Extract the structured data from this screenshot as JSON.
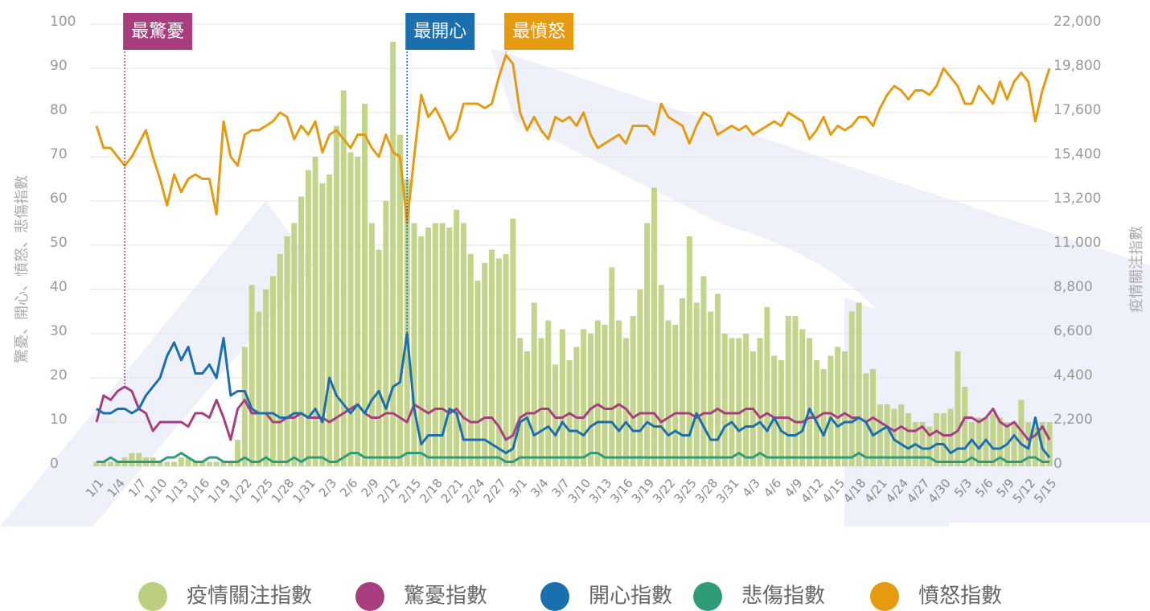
{
  "chart_data": {
    "type": "bar-line",
    "y_label": "驚憂、開心、憤怒、悲傷指數",
    "y2_label": "疫情關注指數",
    "ylim": [
      0,
      100
    ],
    "yticks": [
      0,
      10,
      20,
      30,
      40,
      50,
      60,
      70,
      80,
      90,
      100
    ],
    "y2lim": [
      0,
      22000
    ],
    "y2ticks": [
      0,
      {
        "value": 2200,
        "label": "2,200"
      },
      {
        "value": 4400,
        "label": "4,400"
      },
      {
        "value": 6600,
        "label": "6,600"
      },
      {
        "value": 8800,
        "label": "8,800"
      },
      {
        "value": 11000,
        "label": "11,000"
      },
      {
        "value": 13200,
        "label": "13,200"
      },
      {
        "value": 15400,
        "label": "15,400"
      },
      {
        "value": 17600,
        "label": "17,600"
      },
      {
        "value": 19800,
        "label": "19,800"
      },
      {
        "value": 22000,
        "label": "22,000"
      }
    ],
    "grid": true,
    "categories": [
      "1/1",
      null,
      null,
      "1/4",
      null,
      null,
      "1/7",
      null,
      null,
      "1/10",
      null,
      null,
      "1/13",
      null,
      null,
      "1/16",
      null,
      null,
      "1/19",
      null,
      null,
      "1/22",
      null,
      null,
      "1/25",
      null,
      null,
      "1/28",
      null,
      null,
      "1/31",
      null,
      null,
      "2/3",
      null,
      null,
      "2/6",
      null,
      null,
      "2/9",
      null,
      null,
      "2/12",
      null,
      null,
      "2/15",
      null,
      null,
      "2/18",
      null,
      null,
      "2/21",
      null,
      null,
      "2/24",
      null,
      null,
      "2/27",
      null,
      null,
      "3/1",
      null,
      null,
      "3/4",
      null,
      null,
      "3/7",
      null,
      null,
      "3/10",
      null,
      null,
      "3/13",
      null,
      null,
      "3/16",
      null,
      null,
      "3/19",
      null,
      null,
      "3/22",
      null,
      null,
      "3/25",
      null,
      null,
      "3/28",
      null,
      null,
      "3/31",
      null,
      null,
      "4/3",
      null,
      null,
      "4/6",
      null,
      null,
      "4/9",
      null,
      null,
      "4/12",
      null,
      null,
      "4/15",
      null,
      null,
      "4/18",
      null,
      null,
      "4/21",
      null,
      null,
      "4/24",
      null,
      null,
      "4/27",
      null,
      null,
      "4/30",
      null,
      null,
      "5/3",
      null,
      null,
      "5/6",
      null,
      null,
      "5/9",
      null,
      null,
      "5/12",
      null,
      null,
      "5/15"
    ],
    "series": [
      {
        "name": "疫情關注指數",
        "type": "bar",
        "axis": "y2",
        "color": "#bccf7e",
        "values": [
          220,
          220,
          220,
          220,
          440,
          660,
          660,
          440,
          440,
          220,
          220,
          220,
          440,
          440,
          220,
          220,
          220,
          220,
          220,
          220,
          1320,
          5940,
          9020,
          7700,
          8800,
          9460,
          10560,
          11440,
          12100,
          13420,
          14740,
          15400,
          14080,
          14520,
          16940,
          18700,
          15620,
          15400,
          18040,
          12100,
          10780,
          13200,
          21120,
          16500,
          14300,
          12100,
          11440,
          11880,
          12100,
          12100,
          11880,
          12760,
          12100,
          10560,
          9240,
          10120,
          10780,
          10340,
          10560,
          12320,
          6380,
          5720,
          8140,
          6380,
          7260,
          5060,
          6820,
          5280,
          5940,
          6820,
          6600,
          7260,
          7040,
          9900,
          7260,
          6380,
          7480,
          8800,
          12100,
          13860,
          9020,
          7260,
          7040,
          8360,
          11440,
          8140,
          9460,
          7700,
          8580,
          6600,
          6380,
          6380,
          6600,
          5720,
          6380,
          7920,
          5500,
          5280,
          7480,
          7480,
          6820,
          6380,
          5280,
          4840,
          5500,
          5940,
          5720,
          7700,
          8140,
          4620,
          4840,
          3080,
          3080,
          2860,
          3080,
          2640,
          2200,
          2200,
          1980,
          2640,
          2640,
          2860,
          5720,
          3960,
          2200,
          2420,
          2420,
          2640,
          2420,
          2200,
          2200,
          3300,
          2200,
          1980,
          2200,
          2200
        ]
      },
      {
        "name": "驚憂指數",
        "type": "line",
        "color": "#a83d80",
        "annotation": "最驚憂",
        "values": [
          10,
          16,
          15,
          17,
          18,
          17,
          13,
          12,
          8,
          10,
          10,
          10,
          10,
          9,
          12,
          12,
          11,
          15,
          11,
          6,
          13,
          15,
          12,
          12,
          12,
          10,
          10,
          11,
          11,
          12,
          11,
          11,
          11,
          10,
          11,
          12,
          13,
          14,
          12,
          11,
          11,
          12,
          12,
          11,
          10,
          14,
          13,
          12,
          13,
          13,
          12,
          13,
          11,
          10,
          10,
          11,
          11,
          9,
          6,
          7,
          11,
          12,
          12,
          13,
          13,
          11,
          11,
          12,
          11,
          11,
          13,
          14,
          13,
          13,
          14,
          13,
          11,
          12,
          12,
          12,
          10,
          11,
          12,
          12,
          12,
          11,
          12,
          12,
          13,
          12,
          12,
          12,
          13,
          13,
          11,
          12,
          11,
          11,
          11,
          10,
          10,
          11,
          11,
          12,
          12,
          11,
          12,
          11,
          11,
          10,
          11,
          10,
          9,
          8,
          9,
          8,
          8,
          9,
          7,
          8,
          7,
          7,
          8,
          11,
          11,
          10,
          11,
          13,
          10,
          9,
          10,
          8,
          6,
          7,
          9,
          6
        ]
      },
      {
        "name": "開心指數",
        "type": "line",
        "color": "#1a6fae",
        "annotation": "最開心",
        "values": [
          13,
          12,
          12,
          13,
          13,
          12,
          13,
          16,
          18,
          20,
          25,
          28,
          24,
          27,
          21,
          21,
          23,
          20,
          29,
          16,
          17,
          17,
          13,
          12,
          12,
          12,
          11,
          11,
          12,
          12,
          11,
          13,
          10,
          20,
          16,
          14,
          12,
          14,
          12,
          15,
          17,
          13,
          18,
          19,
          30,
          13,
          5,
          7,
          7,
          7,
          13,
          12,
          6,
          6,
          6,
          6,
          5,
          4,
          3,
          4,
          10,
          11,
          7,
          8,
          9,
          7,
          10,
          8,
          8,
          7,
          9,
          10,
          10,
          10,
          8,
          10,
          8,
          8,
          10,
          9,
          9,
          7,
          8,
          7,
          7,
          12,
          9,
          6,
          6,
          9,
          10,
          8,
          9,
          9,
          10,
          8,
          11,
          8,
          7,
          7,
          8,
          13,
          10,
          7,
          11,
          9,
          10,
          10,
          11,
          10,
          7,
          8,
          9,
          6,
          5,
          4,
          5,
          4,
          4,
          5,
          5,
          3,
          4,
          4,
          6,
          4,
          6,
          4,
          4,
          5,
          7,
          5,
          4,
          11,
          4,
          2
        ]
      },
      {
        "name": "悲傷指數",
        "type": "line",
        "color": "#2e9c78",
        "values": [
          1,
          1,
          2,
          1,
          1,
          1,
          1,
          1,
          1,
          1,
          2,
          2,
          3,
          2,
          1,
          1,
          2,
          2,
          1,
          1,
          1,
          2,
          1,
          1,
          2,
          1,
          1,
          1,
          2,
          1,
          2,
          2,
          2,
          1,
          1,
          2,
          3,
          3,
          2,
          2,
          2,
          2,
          2,
          2,
          3,
          3,
          3,
          2,
          2,
          2,
          2,
          2,
          2,
          2,
          2,
          2,
          2,
          2,
          1,
          1,
          2,
          2,
          2,
          2,
          2,
          2,
          2,
          2,
          2,
          2,
          3,
          3,
          2,
          2,
          2,
          2,
          2,
          2,
          2,
          2,
          2,
          2,
          2,
          2,
          2,
          2,
          2,
          2,
          2,
          2,
          2,
          3,
          2,
          2,
          3,
          2,
          2,
          2,
          2,
          2,
          2,
          2,
          2,
          2,
          2,
          2,
          2,
          2,
          3,
          2,
          2,
          2,
          2,
          2,
          2,
          2,
          2,
          2,
          2,
          1,
          1,
          1,
          1,
          1,
          2,
          1,
          1,
          1,
          2,
          1,
          1,
          1,
          2,
          2,
          1,
          1
        ]
      },
      {
        "name": "憤怒指數",
        "type": "line",
        "color": "#e59a10",
        "annotation": "最憤怒",
        "values": [
          77,
          72,
          72,
          70,
          68,
          70,
          73,
          76,
          70,
          65,
          59,
          66,
          62,
          65,
          66,
          65,
          65,
          57,
          78,
          70,
          68,
          75,
          76,
          76,
          77,
          78,
          80,
          79,
          74,
          77,
          75,
          78,
          71,
          75,
          76,
          74,
          72,
          75,
          75,
          72,
          70,
          75,
          71,
          70,
          55,
          70,
          84,
          79,
          81,
          78,
          74,
          76,
          82,
          82,
          82,
          81,
          82,
          88,
          93,
          91,
          80,
          76,
          79,
          76,
          74,
          79,
          78,
          79,
          77,
          80,
          75,
          72,
          73,
          74,
          75,
          73,
          77,
          77,
          77,
          75,
          82,
          79,
          78,
          77,
          73,
          77,
          80,
          79,
          75,
          76,
          77,
          76,
          77,
          75,
          76,
          77,
          78,
          77,
          80,
          79,
          78,
          74,
          76,
          79,
          75,
          77,
          76,
          77,
          79,
          79,
          77,
          81,
          84,
          86,
          85,
          83,
          85,
          85,
          84,
          86,
          90,
          88,
          86,
          82,
          82,
          86,
          84,
          82,
          87,
          83,
          87,
          89,
          87,
          78,
          85,
          90
        ]
      }
    ]
  }
}
